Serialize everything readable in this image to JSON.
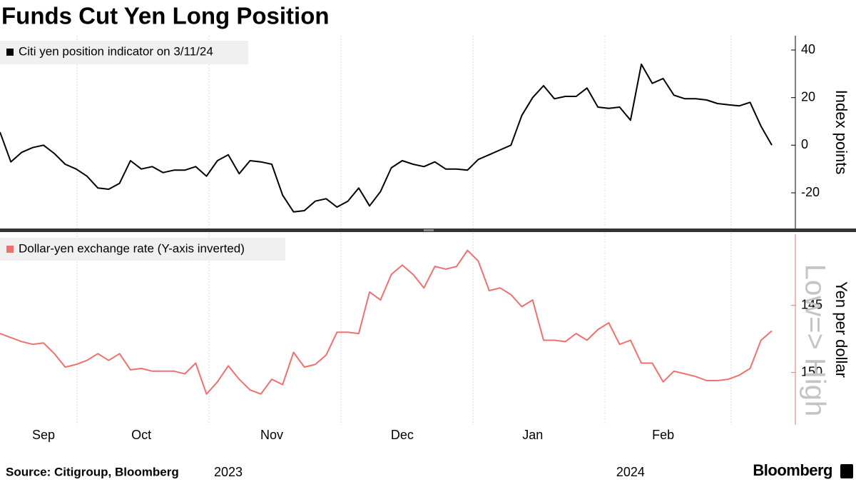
{
  "title": "Funds Cut Yen Long Position",
  "source": "Source: Citigroup, Bloomberg",
  "brand": "Bloomberg",
  "chart_data": [
    {
      "type": "line",
      "y_label": "Index points",
      "ylim": [
        -35,
        46
      ],
      "yticks": [
        -20,
        0,
        20,
        40
      ],
      "series": [
        {
          "name": "Citi yen position indicator on 3/11/24",
          "color": "#000000",
          "values": [
            5.5,
            -7,
            -3,
            -1,
            0,
            -3.5,
            -8,
            -10,
            -13,
            -18,
            -18.5,
            -16,
            -6.5,
            -10,
            -9,
            -11.5,
            -10.5,
            -10.5,
            -9,
            -13,
            -6.5,
            -4,
            -12,
            -6.5,
            -7,
            -8,
            -21,
            -28,
            -27.5,
            -23.5,
            -22.5,
            -26,
            -23.5,
            -18,
            -25.5,
            -19.5,
            -9.5,
            -6.5,
            -8,
            -9,
            -7,
            -10,
            -10,
            -10.5,
            -6,
            -4,
            -2,
            0,
            12.5,
            20,
            25,
            19.5,
            20.5,
            20.5,
            24,
            16,
            15.5,
            16,
            10.5,
            34,
            26,
            28,
            21,
            19.5,
            19.5,
            19,
            17.5,
            17,
            16.5,
            18,
            8,
            0
          ]
        }
      ]
    },
    {
      "type": "line",
      "y_label": "Yen per dollar",
      "annotation": "Low=> High",
      "ylim": [
        139.7,
        153.9
      ],
      "y_inverted": true,
      "yticks": [
        145,
        150
      ],
      "categories": [
        null,
        null,
        null,
        null,
        "Sep",
        null,
        null,
        null,
        null,
        null,
        null,
        null,
        null,
        "Oct",
        null,
        null,
        null,
        null,
        null,
        null,
        null,
        null,
        null,
        null,
        null,
        "Nov",
        null,
        null,
        null,
        null,
        null,
        null,
        null,
        null,
        null,
        null,
        null,
        "Dec",
        null,
        null,
        null,
        null,
        null,
        null,
        null,
        null,
        null,
        null,
        null,
        "Jan",
        null,
        null,
        null,
        null,
        null,
        null,
        null,
        null,
        null,
        null,
        null,
        "Feb",
        null,
        null,
        null,
        null,
        null,
        null,
        null,
        null,
        null,
        null
      ],
      "years": [
        null,
        null,
        null,
        null,
        null,
        null,
        null,
        null,
        null,
        null,
        null,
        null,
        null,
        null,
        null,
        null,
        null,
        null,
        null,
        null,
        null,
        "2023",
        null,
        null,
        null,
        null,
        null,
        null,
        null,
        null,
        null,
        null,
        null,
        null,
        null,
        null,
        null,
        null,
        null,
        null,
        null,
        null,
        null,
        null,
        null,
        null,
        null,
        null,
        null,
        null,
        null,
        null,
        null,
        null,
        null,
        null,
        null,
        null,
        "2024",
        null,
        null,
        null,
        null,
        null,
        null,
        null,
        null,
        null,
        null,
        null,
        null,
        null
      ],
      "series": [
        {
          "name": "Dollar-yen exchange rate (Y-axis inverted)",
          "color": "#f07070",
          "values": [
            147.1,
            147.4,
            147.7,
            147.9,
            147.8,
            148.6,
            149.6,
            149.4,
            149.1,
            148.6,
            149.1,
            148.6,
            149.8,
            149.7,
            149.9,
            149.9,
            149.9,
            150.1,
            149.3,
            151.6,
            150.7,
            149.5,
            150.5,
            151.3,
            151.6,
            150.5,
            150.9,
            148.5,
            149.6,
            149.4,
            148.7,
            147.0,
            147.0,
            147.1,
            144.0,
            144.6,
            142.7,
            142.0,
            142.7,
            143.7,
            142.1,
            142.3,
            142.1,
            140.9,
            141.7,
            143.9,
            143.7,
            144.2,
            145.1,
            144.6,
            147.6,
            147.6,
            147.7,
            147.1,
            147.6,
            146.8,
            146.3,
            147.9,
            147.6,
            149.3,
            149.3,
            150.7,
            149.9,
            150.1,
            150.3,
            150.6,
            150.6,
            150.5,
            150.2,
            149.7,
            147.6,
            146.9
          ]
        }
      ]
    }
  ]
}
